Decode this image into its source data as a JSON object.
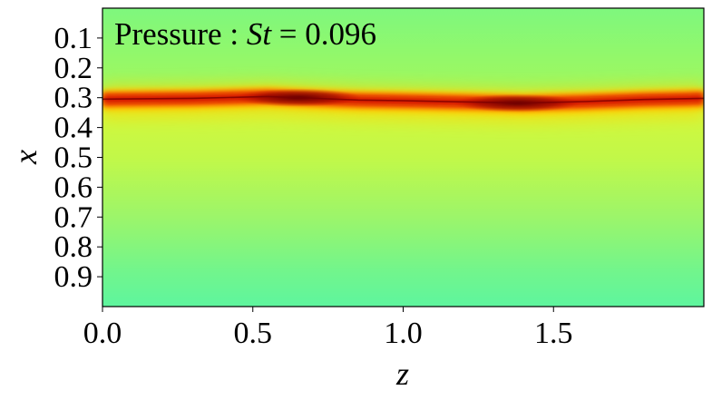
{
  "chart_data": {
    "type": "heatmap",
    "variable": "Pressure",
    "title": {
      "prefix": "Pressure : ",
      "symbol": "St",
      "equals": " = ",
      "value": "0.096"
    },
    "xlabel": "z",
    "ylabel": "x",
    "xlim": [
      0.0,
      2.0
    ],
    "ylim": [
      0.0,
      1.0
    ],
    "y_inverted": true,
    "x_ticks": [
      "0.0",
      "0.5",
      "1.0",
      "1.5"
    ],
    "y_ticks": [
      "0.1",
      "0.2",
      "0.3",
      "0.4",
      "0.5",
      "0.6",
      "0.7",
      "0.8",
      "0.9"
    ],
    "colormap": "jet",
    "colors": {
      "background_field": "#7ef77e",
      "mid_field": "#c8f842",
      "near_band": "#ffd400",
      "band_edge": "#ff6a00",
      "band_core": "#d01000",
      "band_peak": "#7a0000",
      "bottom_field": "#5ef59a"
    },
    "band": {
      "center_x_profile": [
        {
          "z": 0.0,
          "x": 0.305
        },
        {
          "z": 0.3,
          "x": 0.302
        },
        {
          "z": 0.55,
          "x": 0.296
        },
        {
          "z": 0.65,
          "x": 0.3
        },
        {
          "z": 0.85,
          "x": 0.308
        },
        {
          "z": 1.0,
          "x": 0.31
        },
        {
          "z": 1.2,
          "x": 0.314
        },
        {
          "z": 1.4,
          "x": 0.318
        },
        {
          "z": 1.6,
          "x": 0.313
        },
        {
          "z": 1.8,
          "x": 0.306
        },
        {
          "z": 2.0,
          "x": 0.302
        }
      ],
      "peak_regions": [
        {
          "z_center": 0.65,
          "x_center": 0.3
        },
        {
          "z_center": 1.38,
          "x_center": 0.318
        }
      ]
    }
  }
}
